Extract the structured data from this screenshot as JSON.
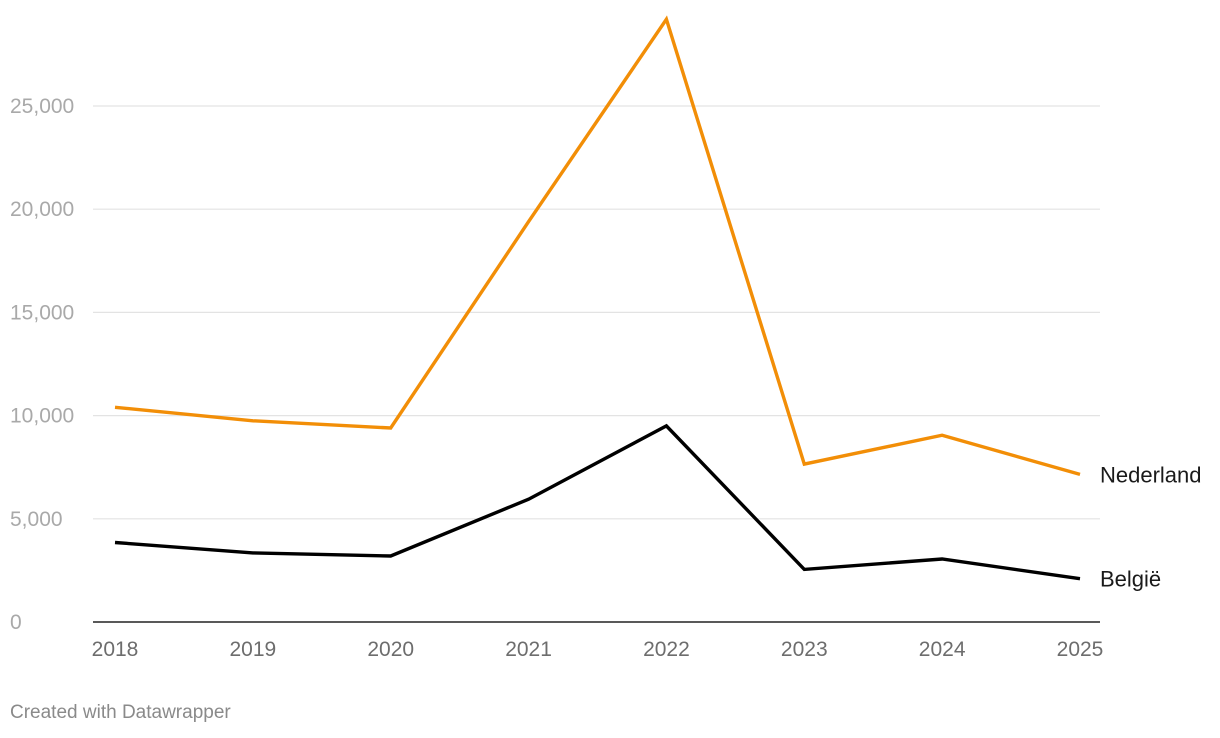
{
  "chart_data": {
    "type": "line",
    "title": "",
    "xlabel": "",
    "ylabel": "",
    "categories": [
      "2018",
      "2019",
      "2020",
      "2021",
      "2022",
      "2023",
      "2024",
      "2025"
    ],
    "series": [
      {
        "name": "Nederland",
        "color": "#f28e07",
        "values": [
          10400,
          9750,
          9400,
          19400,
          29200,
          7650,
          9050,
          7150
        ]
      },
      {
        "name": "België",
        "color": "#000000",
        "values": [
          3850,
          3350,
          3200,
          5950,
          9500,
          2550,
          3050,
          2100
        ]
      }
    ],
    "yticks": [
      {
        "value": 0,
        "label": "0"
      },
      {
        "value": 5000,
        "label": "5,000"
      },
      {
        "value": 10000,
        "label": "10,000"
      },
      {
        "value": 15000,
        "label": "15,000"
      },
      {
        "value": 20000,
        "label": "20,000"
      },
      {
        "value": 25000,
        "label": "25,000"
      }
    ],
    "ylim": [
      0,
      29200
    ],
    "grid": true,
    "legend": "direct labels at line ends (right)"
  },
  "credit": "Created with Datawrapper"
}
